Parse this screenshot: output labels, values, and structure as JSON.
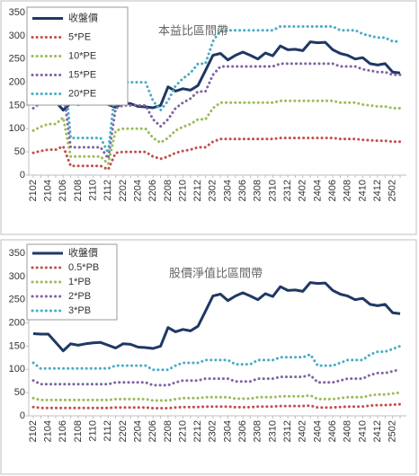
{
  "chart_data": [
    {
      "type": "line",
      "title": "本益比區間帶",
      "ylim": [
        0,
        350
      ],
      "yticks": [
        0,
        50,
        100,
        150,
        200,
        250,
        300,
        350
      ],
      "legend": "top-left",
      "categories": [
        "2102",
        null,
        "2104",
        null,
        "2106",
        null,
        "2108",
        null,
        "2110",
        null,
        "2112",
        null,
        "2202",
        null,
        "2204",
        null,
        "2206",
        null,
        "2208",
        null,
        "2210",
        null,
        "2212",
        null,
        "2302",
        null,
        "2304",
        null,
        "2306",
        null,
        "2308",
        null,
        "2310",
        null,
        "2312",
        null,
        "2402",
        null,
        "2404",
        null,
        "2406",
        null,
        "2408",
        null,
        "2410",
        null,
        "2412",
        null,
        "2502",
        null
      ],
      "series": [
        {
          "name": "收盤價",
          "color": "#1f3864",
          "values": [
            177,
            176,
            176,
            158,
            140,
            155,
            152,
            155,
            157,
            158,
            152,
            146,
            155,
            154,
            148,
            147,
            145,
            150,
            190,
            181,
            186,
            183,
            193,
            225,
            258,
            262,
            248,
            258,
            265,
            258,
            250,
            263,
            257,
            278,
            270,
            271,
            268,
            287,
            285,
            286,
            270,
            262,
            258,
            250,
            253,
            240,
            237,
            240,
            222,
            220
          ]
        },
        {
          "name": "5*PE",
          "color": "#c0504d",
          "values": [
            48,
            52,
            55,
            55,
            62,
            20,
            20,
            20,
            20,
            20,
            12,
            48,
            50,
            50,
            50,
            50,
            40,
            35,
            40,
            48,
            52,
            55,
            60,
            60,
            72,
            78,
            78,
            78,
            78,
            78,
            78,
            78,
            78,
            80,
            80,
            80,
            80,
            80,
            80,
            80,
            80,
            78,
            78,
            78,
            76,
            75,
            74,
            74,
            72,
            72
          ]
        },
        {
          "name": "10*PE",
          "color": "#9bbb59",
          "values": [
            96,
            104,
            110,
            110,
            124,
            40,
            40,
            40,
            40,
            40,
            24,
            96,
            100,
            100,
            100,
            100,
            80,
            70,
            80,
            96,
            104,
            110,
            120,
            120,
            144,
            156,
            156,
            156,
            156,
            156,
            156,
            156,
            156,
            160,
            160,
            160,
            160,
            160,
            160,
            160,
            160,
            156,
            156,
            156,
            152,
            150,
            148,
            148,
            144,
            144
          ]
        },
        {
          "name": "15*PE",
          "color": "#8064a2",
          "values": [
            144,
            156,
            165,
            165,
            186,
            60,
            60,
            60,
            60,
            60,
            36,
            144,
            150,
            150,
            150,
            150,
            120,
            105,
            120,
            144,
            156,
            165,
            180,
            180,
            216,
            234,
            234,
            234,
            234,
            234,
            234,
            234,
            234,
            240,
            240,
            240,
            240,
            240,
            240,
            240,
            240,
            234,
            234,
            234,
            228,
            225,
            222,
            222,
            216,
            216
          ]
        },
        {
          "name": "20*PE",
          "color": "#4bacc6",
          "values": [
            192,
            208,
            220,
            220,
            248,
            80,
            80,
            80,
            80,
            80,
            48,
            192,
            200,
            200,
            200,
            200,
            160,
            140,
            160,
            192,
            208,
            220,
            240,
            240,
            288,
            312,
            312,
            312,
            312,
            312,
            312,
            312,
            312,
            320,
            320,
            320,
            320,
            320,
            320,
            320,
            320,
            312,
            312,
            312,
            304,
            300,
            296,
            296,
            288,
            288
          ]
        }
      ]
    },
    {
      "type": "line",
      "title": "股價淨值比區間帶",
      "ylim": [
        0,
        350
      ],
      "yticks": [
        0,
        50,
        100,
        150,
        200,
        250,
        300,
        350
      ],
      "legend": "top-left",
      "categories": [
        "2102",
        null,
        "2104",
        null,
        "2106",
        null,
        "2108",
        null,
        "2110",
        null,
        "2112",
        null,
        "2202",
        null,
        "2204",
        null,
        "2206",
        null,
        "2208",
        null,
        "2210",
        null,
        "2212",
        null,
        "2302",
        null,
        "2304",
        null,
        "2306",
        null,
        "2308",
        null,
        "2310",
        null,
        "2312",
        null,
        "2402",
        null,
        "2404",
        null,
        "2406",
        null,
        "2408",
        null,
        "2410",
        null,
        "2412",
        null,
        "2502",
        null
      ],
      "series": [
        {
          "name": "收盤價",
          "color": "#1f3864",
          "values": [
            177,
            176,
            176,
            158,
            140,
            155,
            152,
            155,
            157,
            158,
            152,
            146,
            155,
            154,
            148,
            147,
            145,
            150,
            190,
            181,
            186,
            183,
            193,
            225,
            258,
            262,
            248,
            258,
            265,
            258,
            250,
            263,
            257,
            278,
            270,
            271,
            268,
            287,
            285,
            286,
            270,
            262,
            258,
            250,
            253,
            240,
            237,
            240,
            222,
            220
          ]
        },
        {
          "name": "0.5*PB",
          "color": "#c0504d",
          "values": [
            19,
            17,
            17,
            17,
            17,
            17,
            17,
            17,
            17,
            17,
            17,
            18,
            18,
            18,
            18,
            18,
            16.5,
            16.5,
            16.5,
            18,
            19,
            19,
            19,
            20,
            20,
            20,
            20,
            18.5,
            18.5,
            18.5,
            20,
            20,
            20,
            21,
            21,
            21,
            21,
            22,
            18,
            18,
            18,
            19,
            20,
            20,
            20,
            22,
            23,
            23,
            24,
            25
          ]
        },
        {
          "name": "1*PB",
          "color": "#9bbb59",
          "values": [
            38,
            34,
            34,
            34,
            34,
            34,
            34,
            34,
            34,
            34,
            34,
            36,
            36,
            36,
            36,
            36,
            33,
            33,
            33,
            36,
            38,
            38,
            38,
            40,
            40,
            40,
            40,
            37,
            37,
            37,
            40,
            40,
            40,
            42,
            42,
            42,
            42,
            44,
            36,
            36,
            36,
            38,
            40,
            40,
            40,
            44,
            46,
            46,
            48,
            50
          ]
        },
        {
          "name": "2*PB",
          "color": "#8064a2",
          "values": [
            76,
            68,
            68,
            68,
            68,
            68,
            68,
            68,
            68,
            68,
            68,
            72,
            72,
            72,
            72,
            72,
            66,
            66,
            66,
            72,
            76,
            76,
            76,
            80,
            80,
            80,
            80,
            74,
            74,
            74,
            80,
            80,
            80,
            84,
            84,
            84,
            84,
            88,
            72,
            72,
            72,
            76,
            80,
            80,
            80,
            88,
            92,
            92,
            96,
            100
          ]
        },
        {
          "name": "3*PB",
          "color": "#4bacc6",
          "values": [
            114,
            102,
            102,
            102,
            102,
            102,
            102,
            102,
            102,
            102,
            102,
            108,
            108,
            108,
            108,
            108,
            99,
            99,
            99,
            108,
            114,
            114,
            114,
            120,
            120,
            120,
            120,
            111,
            111,
            111,
            120,
            120,
            120,
            126,
            126,
            126,
            126,
            132,
            108,
            108,
            108,
            114,
            120,
            120,
            120,
            132,
            138,
            138,
            144,
            150
          ]
        }
      ]
    }
  ]
}
